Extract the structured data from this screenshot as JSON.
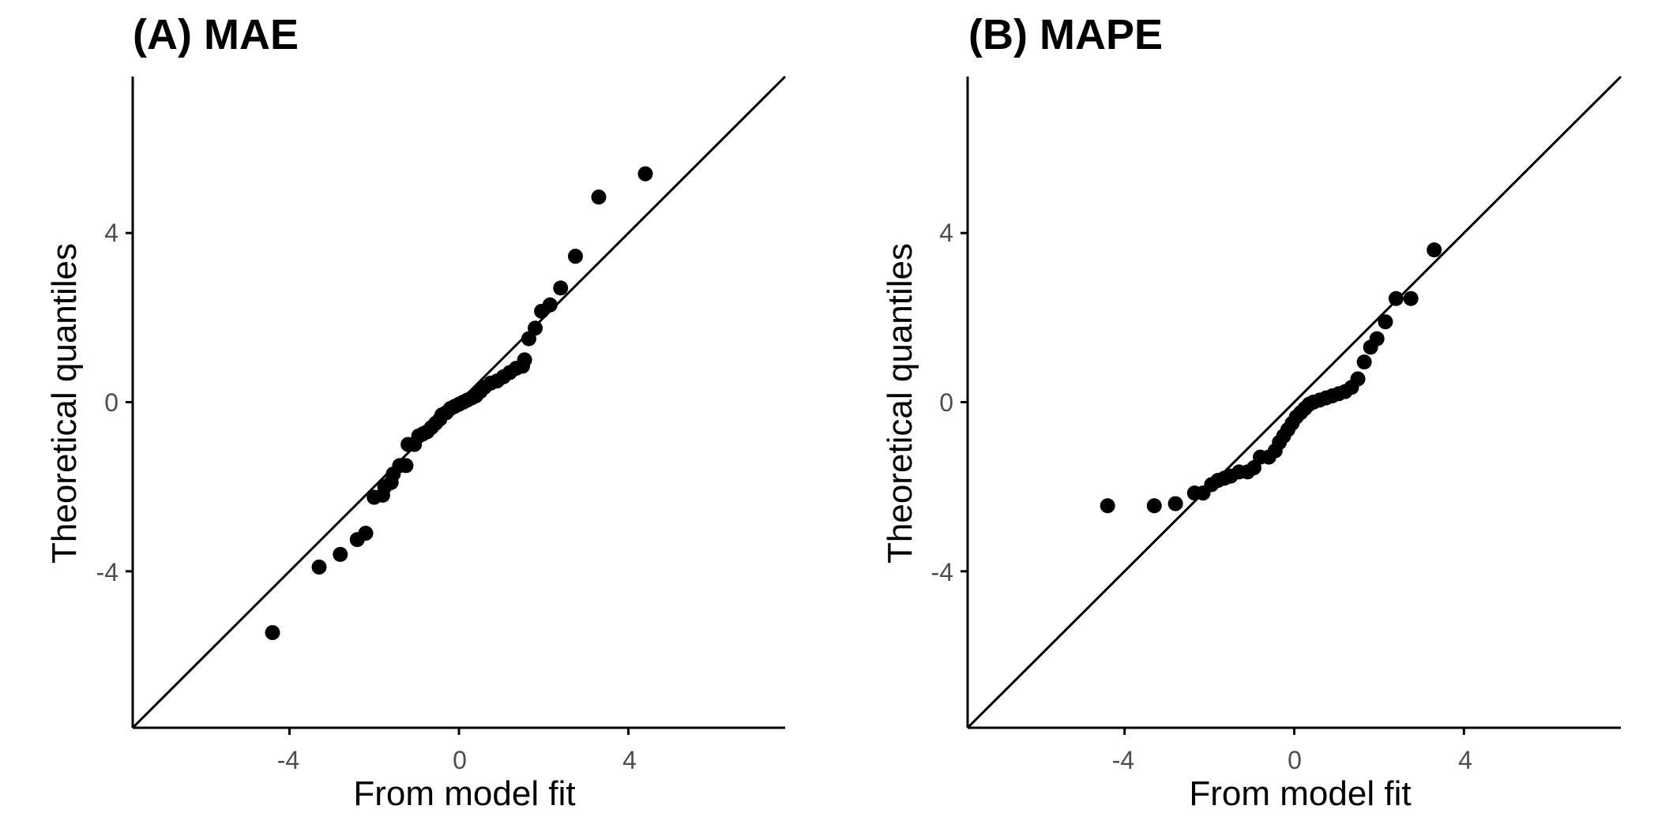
{
  "chart_data": [
    {
      "type": "scatter",
      "title": "(A) MAE",
      "xlabel": "From model fit",
      "ylabel": "Theoretical quantiles",
      "xlim": [
        -7.7,
        7.7
      ],
      "ylim": [
        -7.7,
        7.7
      ],
      "xticks": [
        -4,
        0,
        4
      ],
      "xtick_labels": [
        "-4",
        "0",
        "4"
      ],
      "yticks": [
        -4,
        0,
        4
      ],
      "ytick_labels": [
        "-4",
        "0",
        "4"
      ],
      "reference_line": "y = x",
      "grid": false,
      "colors": {
        "points": "#000000",
        "axes": "#000000",
        "ticks": "#4d4d4d"
      },
      "points": [
        [
          -4.4,
          -5.45
        ],
        [
          -3.3,
          -3.9
        ],
        [
          -2.8,
          -3.6
        ],
        [
          -2.4,
          -3.25
        ],
        [
          -2.2,
          -3.1
        ],
        [
          -2.0,
          -2.25
        ],
        [
          -1.8,
          -2.2
        ],
        [
          -1.75,
          -2.0
        ],
        [
          -1.6,
          -1.9
        ],
        [
          -1.55,
          -1.7
        ],
        [
          -1.4,
          -1.5
        ],
        [
          -1.25,
          -1.5
        ],
        [
          -1.2,
          -1.0
        ],
        [
          -1.05,
          -1.0
        ],
        [
          -0.95,
          -0.8
        ],
        [
          -0.85,
          -0.75
        ],
        [
          -0.75,
          -0.7
        ],
        [
          -0.65,
          -0.6
        ],
        [
          -0.55,
          -0.5
        ],
        [
          -0.45,
          -0.4
        ],
        [
          -0.4,
          -0.3
        ],
        [
          -0.3,
          -0.25
        ],
        [
          -0.2,
          -0.15
        ],
        [
          -0.1,
          -0.1
        ],
        [
          0.0,
          -0.05
        ],
        [
          0.1,
          0.0
        ],
        [
          0.2,
          0.05
        ],
        [
          0.3,
          0.1
        ],
        [
          0.4,
          0.15
        ],
        [
          0.5,
          0.25
        ],
        [
          0.6,
          0.35
        ],
        [
          0.75,
          0.45
        ],
        [
          0.9,
          0.5
        ],
        [
          1.05,
          0.6
        ],
        [
          1.2,
          0.7
        ],
        [
          1.35,
          0.8
        ],
        [
          1.5,
          0.85
        ],
        [
          1.55,
          1.0
        ],
        [
          1.65,
          1.5
        ],
        [
          1.8,
          1.75
        ],
        [
          1.95,
          2.15
        ],
        [
          2.15,
          2.3
        ],
        [
          2.4,
          2.7
        ],
        [
          2.75,
          3.45
        ],
        [
          3.3,
          4.85
        ],
        [
          4.4,
          5.4
        ]
      ]
    },
    {
      "type": "scatter",
      "title": "(B) MAPE",
      "xlabel": "From model fit",
      "ylabel": "Theoretical quantiles",
      "xlim": [
        -7.7,
        7.7
      ],
      "ylim": [
        -7.7,
        7.7
      ],
      "xticks": [
        -4,
        0,
        4
      ],
      "xtick_labels": [
        "-4",
        "0",
        "4"
      ],
      "yticks": [
        -4,
        0,
        4
      ],
      "ytick_labels": [
        "-4",
        "0",
        "4"
      ],
      "reference_line": "y = x",
      "grid": false,
      "colors": {
        "points": "#000000",
        "axes": "#000000",
        "ticks": "#4d4d4d"
      },
      "points": [
        [
          -4.4,
          -2.45
        ],
        [
          -3.3,
          -2.45
        ],
        [
          -2.8,
          -2.4
        ],
        [
          -2.35,
          -2.15
        ],
        [
          -2.15,
          -2.15
        ],
        [
          -1.95,
          -1.95
        ],
        [
          -1.8,
          -1.85
        ],
        [
          -1.65,
          -1.8
        ],
        [
          -1.5,
          -1.75
        ],
        [
          -1.3,
          -1.65
        ],
        [
          -1.1,
          -1.65
        ],
        [
          -0.95,
          -1.55
        ],
        [
          -0.8,
          -1.3
        ],
        [
          -0.6,
          -1.3
        ],
        [
          -0.45,
          -1.15
        ],
        [
          -0.35,
          -0.95
        ],
        [
          -0.25,
          -0.8
        ],
        [
          -0.15,
          -0.65
        ],
        [
          -0.05,
          -0.5
        ],
        [
          0.05,
          -0.35
        ],
        [
          0.15,
          -0.25
        ],
        [
          0.25,
          -0.15
        ],
        [
          0.35,
          -0.05
        ],
        [
          0.45,
          0.0
        ],
        [
          0.6,
          0.05
        ],
        [
          0.75,
          0.1
        ],
        [
          0.9,
          0.15
        ],
        [
          1.05,
          0.2
        ],
        [
          1.2,
          0.25
        ],
        [
          1.35,
          0.35
        ],
        [
          1.5,
          0.55
        ],
        [
          1.65,
          0.95
        ],
        [
          1.8,
          1.3
        ],
        [
          1.95,
          1.5
        ],
        [
          2.15,
          1.9
        ],
        [
          2.4,
          2.45
        ],
        [
          2.75,
          2.45
        ],
        [
          3.3,
          3.6
        ]
      ]
    }
  ]
}
